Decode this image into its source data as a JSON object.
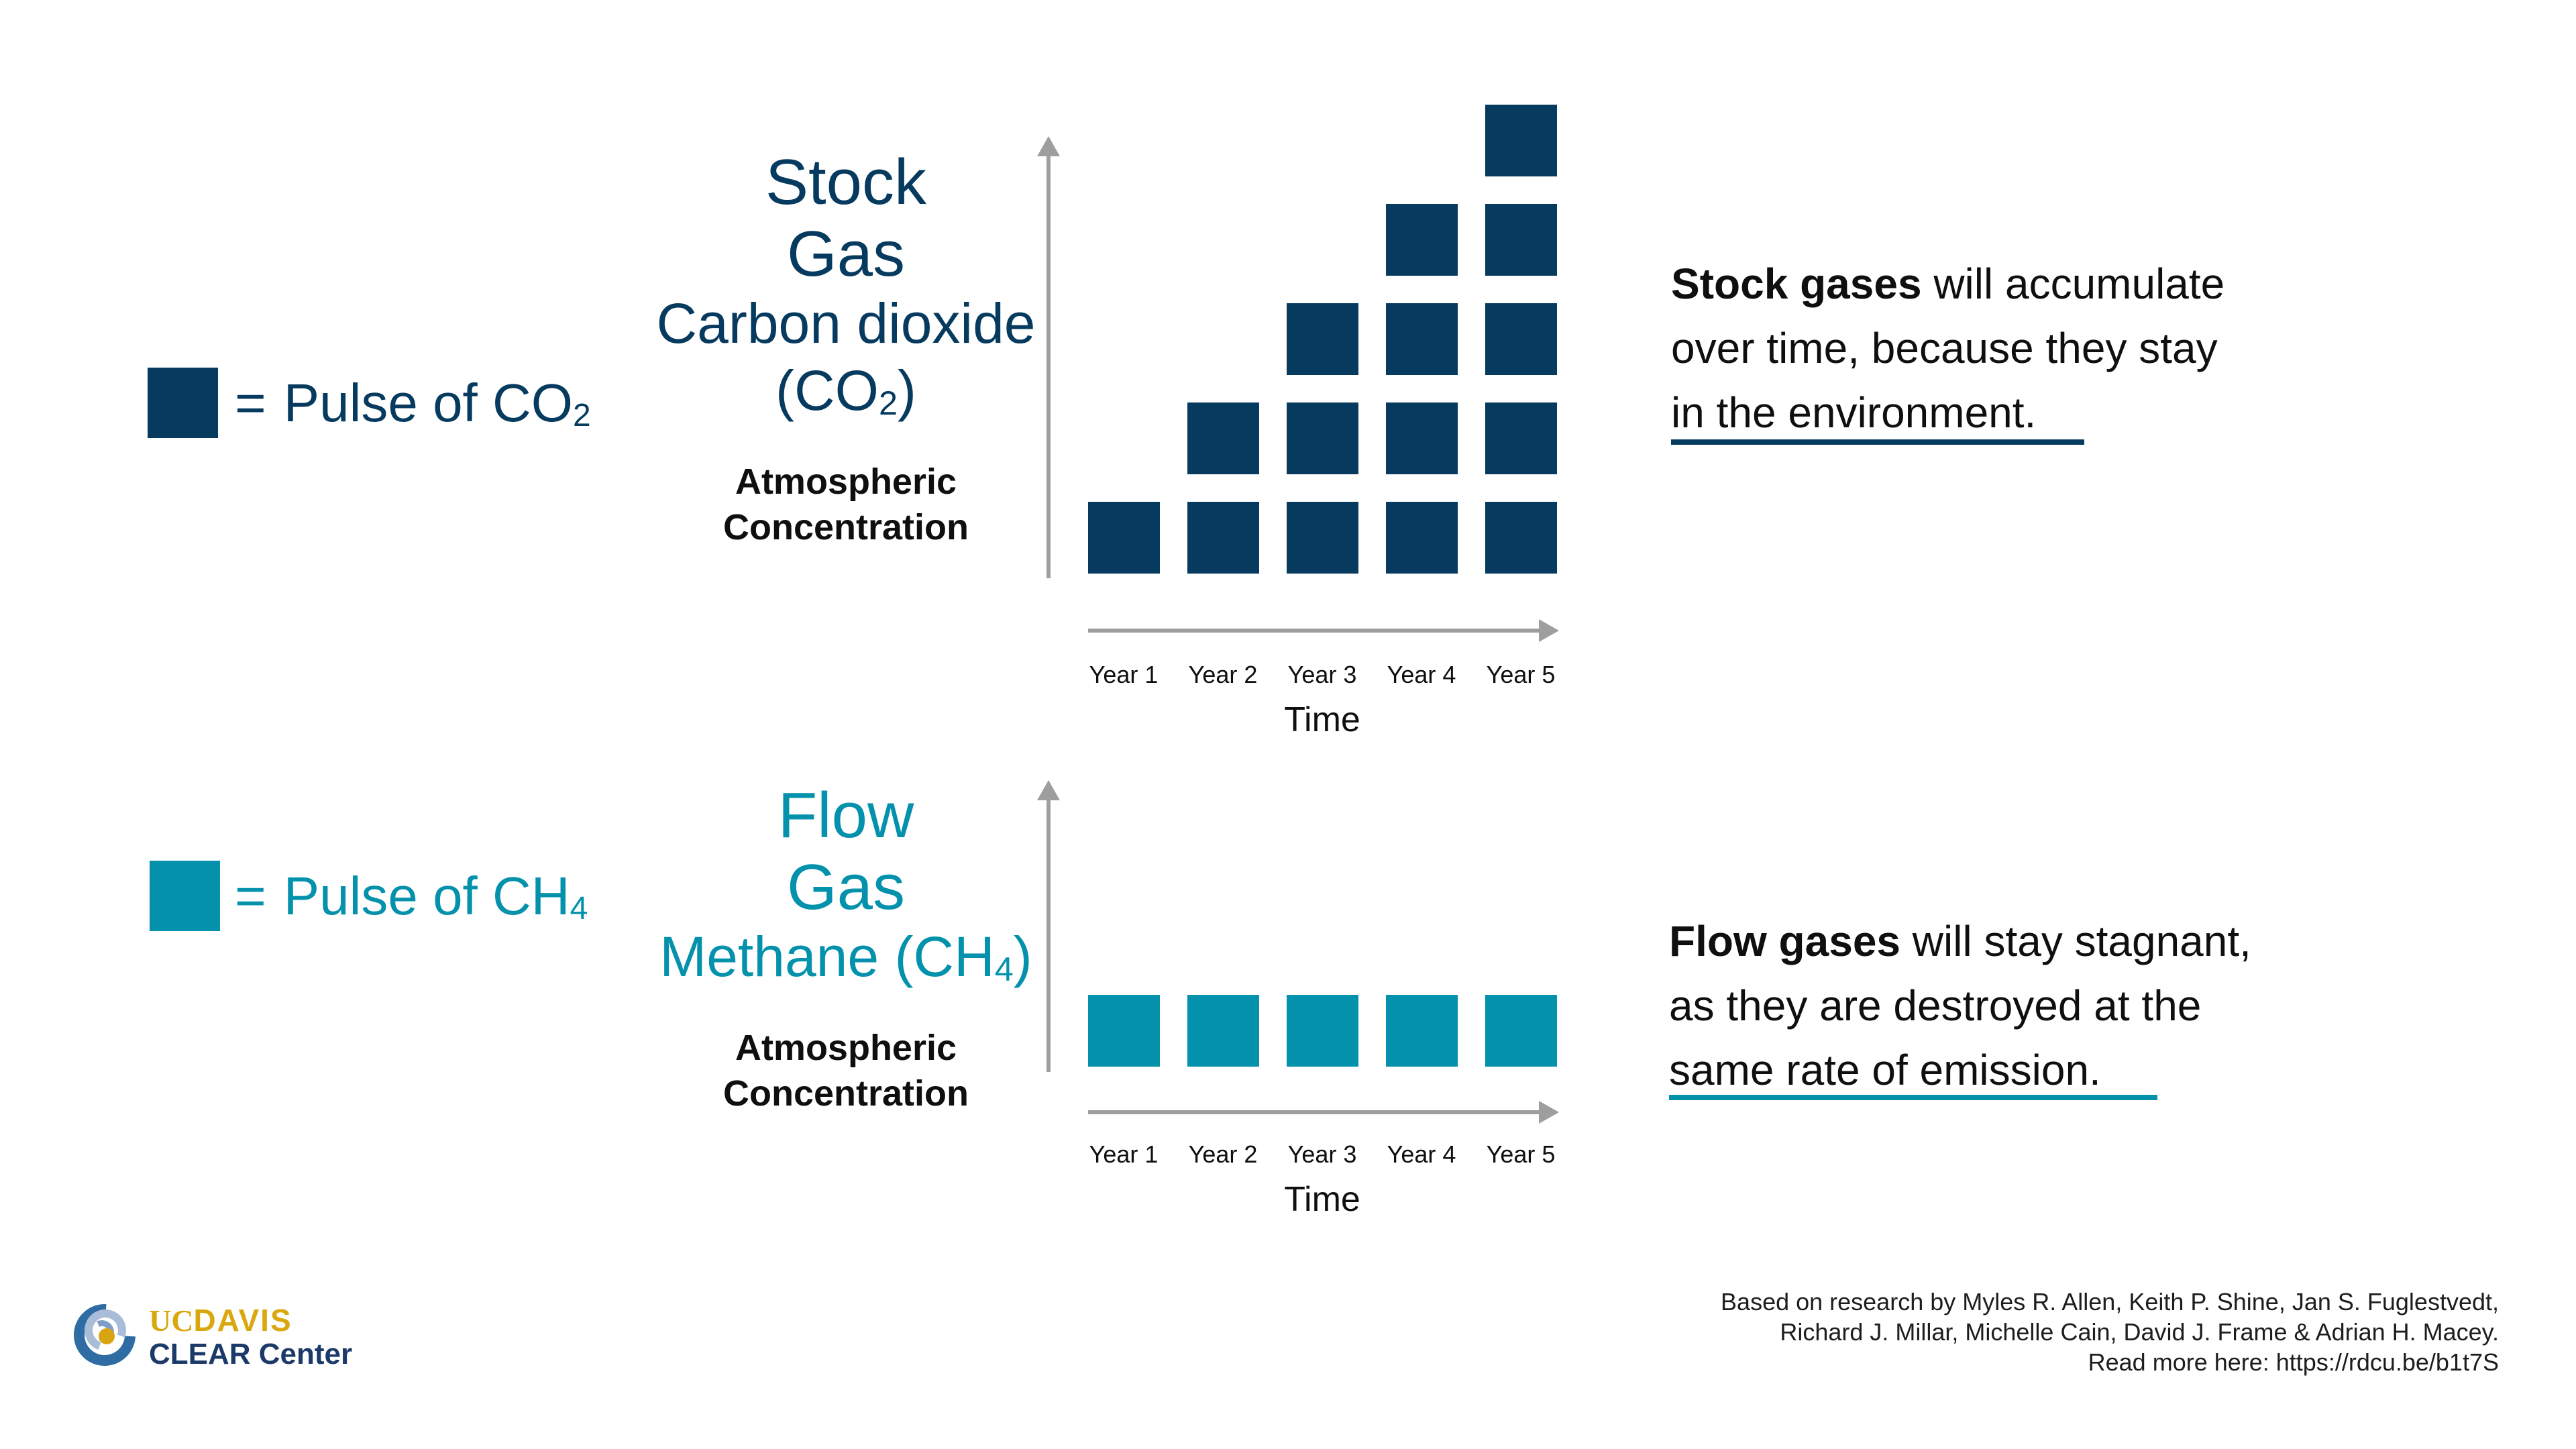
{
  "colors": {
    "navy": "#063A5E",
    "teal": "#0391AC",
    "axis_gray": "#9E9E9E",
    "text_black": "#0F0F0F",
    "ucdavis_gold": "#D9A80E",
    "clear_navy": "#1B3969"
  },
  "legend": {
    "co2": {
      "eq": "=",
      "label_prefix": "Pulse of CO",
      "label_sub": "2"
    },
    "ch4": {
      "eq": "=",
      "label_prefix": "Pulse of CH",
      "label_sub": "4"
    }
  },
  "stock_section": {
    "title_line1": "Stock",
    "title_line2": "Gas",
    "gas_line": "Carbon dioxide",
    "formula_open": "(CO",
    "formula_sub": "2",
    "formula_close": ")",
    "y_axis_line1": "Atmospheric",
    "y_axis_line2": "Concentration",
    "x_axis_label": "Time",
    "years": [
      "Year 1",
      "Year 2",
      "Year 3",
      "Year 4",
      "Year 5"
    ],
    "desc_bold": "Stock gases",
    "desc_rest1": " will accumulate",
    "desc_line2": "over time, because they stay",
    "desc_line3": "in the environment."
  },
  "flow_section": {
    "title_line1": "Flow",
    "title_line2": "Gas",
    "gas_prefix": "Methane (CH",
    "gas_sub": "4",
    "gas_close": ")",
    "y_axis_line1": "Atmospheric",
    "y_axis_line2": "Concentration",
    "x_axis_label": "Time",
    "years": [
      "Year 1",
      "Year 2",
      "Year 3",
      "Year 4",
      "Year 5"
    ],
    "desc_bold": "Flow gases",
    "desc_rest1": " will stay stagnant,",
    "desc_line2": "as they are destroyed at the",
    "desc_line3": "same rate of emission."
  },
  "footer": {
    "logo": {
      "uc": "UC",
      "davis": "DAVIS",
      "center": "CLEAR Center"
    },
    "citation_line1": "Based on research by Myles R. Allen, Keith P. Shine, Jan S. Fuglestvedt,",
    "citation_line2": "Richard J. Millar, Michelle Cain, David J. Frame & Adrian H. Macey.",
    "citation_line3": "Read more here: https://rdcu.be/b1t7S"
  },
  "chart_data": [
    {
      "type": "bar",
      "title": "Stock Gas — Carbon dioxide (CO2)",
      "categories": [
        "Year 1",
        "Year 2",
        "Year 3",
        "Year 4",
        "Year 5"
      ],
      "values": [
        1,
        2,
        3,
        4,
        5
      ],
      "unit": "squares, 1 square = Pulse of CO2",
      "xlabel": "Time",
      "ylabel": "Atmospheric Concentration",
      "legend": "1 square = Pulse of CO2",
      "bar_color": "#063A5E",
      "grid": false,
      "annotation": "Stock gases will accumulate over time, because they stay in the environment."
    },
    {
      "type": "bar",
      "title": "Flow Gas — Methane (CH4)",
      "categories": [
        "Year 1",
        "Year 2",
        "Year 3",
        "Year 4",
        "Year 5"
      ],
      "values": [
        1,
        1,
        1,
        1,
        1
      ],
      "unit": "squares, 1 square = Pulse of CH4",
      "xlabel": "Time",
      "ylabel": "Atmospheric Concentration",
      "legend": "1 square = Pulse of CH4",
      "bar_color": "#0391AC",
      "grid": false,
      "annotation": "Flow gases will stay stagnant, as they are destroyed at the same rate of emission."
    }
  ]
}
